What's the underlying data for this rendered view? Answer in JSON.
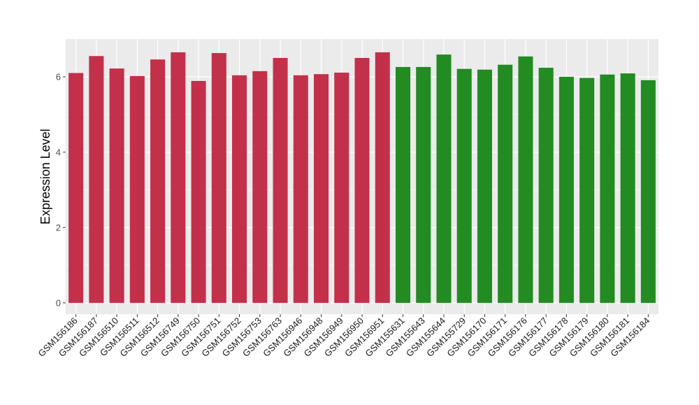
{
  "chart_data": {
    "type": "bar",
    "title": "",
    "xlabel": "",
    "ylabel": "Expression Level",
    "ylim": [
      -0.3,
      7.0
    ],
    "yticks": [
      0,
      2,
      4,
      6
    ],
    "grid": true,
    "legend": "none",
    "categories": [
      "GSM156186",
      "GSM156187",
      "GSM156510",
      "GSM156511",
      "GSM156512",
      "GSM156749",
      "GSM156750",
      "GSM156751",
      "GSM156752",
      "GSM156753",
      "GSM156763",
      "GSM156946",
      "GSM156948",
      "GSM156949",
      "GSM156950",
      "GSM156951",
      "GSM155631",
      "GSM155643",
      "GSM155644",
      "GSM155729",
      "GSM156170",
      "GSM156171",
      "GSM156176",
      "GSM156177",
      "GSM156178",
      "GSM156179",
      "GSM156180",
      "GSM156181",
      "GSM156184"
    ],
    "values": [
      6.1,
      6.55,
      6.22,
      6.02,
      6.46,
      6.65,
      5.89,
      6.63,
      6.04,
      6.15,
      6.5,
      6.04,
      6.07,
      6.11,
      6.5,
      6.65,
      6.26,
      6.26,
      6.59,
      6.21,
      6.19,
      6.32,
      6.54,
      6.24,
      6.0,
      5.97,
      6.06,
      6.09,
      5.91
    ],
    "groups": [
      0,
      0,
      0,
      0,
      0,
      0,
      0,
      0,
      0,
      0,
      0,
      0,
      0,
      0,
      0,
      0,
      1,
      1,
      1,
      1,
      1,
      1,
      1,
      1,
      1,
      1,
      1,
      1,
      1
    ],
    "group_colors": [
      "#C3304A",
      "#228B22"
    ],
    "panel_background": "#EBEBEB",
    "grid_color": "#FFFFFF"
  }
}
